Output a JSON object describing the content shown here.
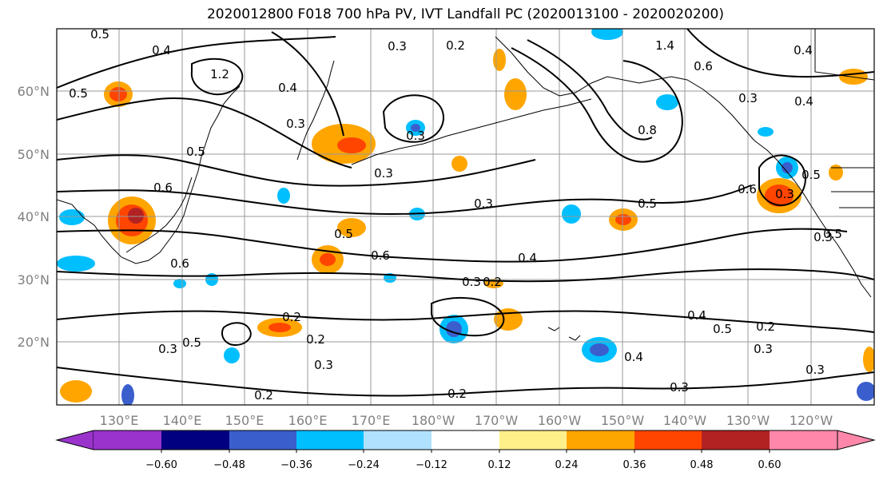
{
  "title": "2020012800 F018 700 hPa PV, IVT Landfall PC (2020013100 - 2020020200)",
  "lat_labels": [
    "60°N",
    "50°N",
    "40°N",
    "30°N",
    "20°N"
  ],
  "lon_labels": [
    "130°E",
    "140°E",
    "150°E",
    "160°E",
    "170°E",
    "180°W",
    "170°W",
    "160°W",
    "150°W",
    "140°W",
    "130°W",
    "120°W"
  ],
  "colorbar": {
    "tick_labels": [
      "−0.60",
      "−0.48",
      "−0.36",
      "−0.24",
      "−0.12",
      "0.12",
      "0.24",
      "0.36",
      "0.48",
      "0.60"
    ],
    "colors": [
      "#9933cc",
      "#000080",
      "#3a5fcd",
      "#00bfff",
      "#b0e2ff",
      "#ffffff",
      "#fff08a",
      "#ffa500",
      "#ff4500",
      "#b22222",
      "#ff88aa"
    ]
  },
  "contour_labels": [
    "0.5",
    "0.4",
    "1.2",
    "0.5",
    "0.6",
    "0.5",
    "0.4",
    "0.3",
    "1.4",
    "0.6",
    "0.3",
    "0.4",
    "0.8",
    "0.3",
    "0.3",
    "0.5",
    "0.3",
    "0.6",
    "0.3",
    "0.5",
    "0.6",
    "0.3",
    "0.5",
    "0.6",
    "0.4",
    "0.5",
    "0.4",
    "0.3",
    "0.2",
    "0.3",
    "0.2",
    "0.2",
    "0.3",
    "0.3",
    "0.4",
    "0.2",
    "0.2",
    "0.3",
    "0.4",
    "0.5",
    "0.3",
    "0.2",
    "0.2",
    "0.3",
    "0.5"
  ],
  "colors": {
    "grid": "#999999",
    "contour": "#000000",
    "frame": "#000000",
    "tick_label": "#808080"
  }
}
